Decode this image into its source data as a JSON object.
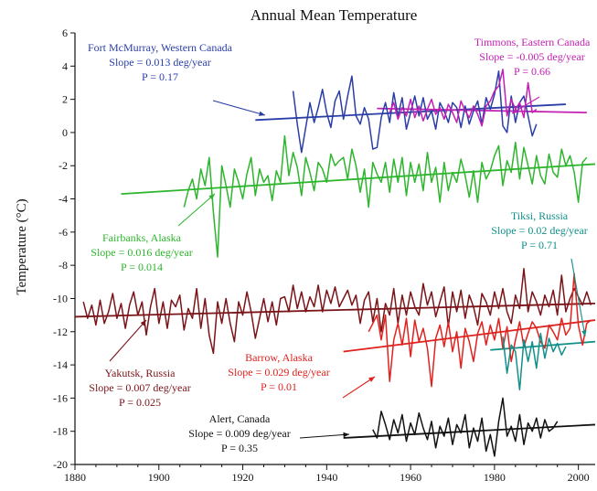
{
  "chart_data": {
    "type": "line",
    "title": "Annual Mean Temperature",
    "xlabel": "",
    "ylabel": "Temperature (°C)",
    "xlim": [
      1880,
      2004
    ],
    "ylim": [
      -20,
      6
    ],
    "xticks": [
      1880,
      1900,
      1920,
      1940,
      1960,
      1980,
      2000
    ],
    "yticks": [
      6,
      4,
      2,
      0,
      -2,
      -4,
      -6,
      -8,
      -10,
      -12,
      -14,
      -16,
      -18,
      -20
    ],
    "grid": false,
    "legend": "none",
    "series": [
      {
        "name": "Fort McMurray, Western Canada",
        "color": "#2a3ea6",
        "annotation": [
          "Fort McMurray, Western Canada",
          "Slope = 0.013 deg/year",
          "P = 0.17"
        ],
        "trend": {
          "x": [
            1923,
            1997
          ],
          "y": [
            0.75,
            1.7
          ]
        },
        "x": [
          1932,
          1933,
          1934,
          1935,
          1936,
          1937,
          1938,
          1939,
          1940,
          1941,
          1942,
          1943,
          1944,
          1945,
          1946,
          1947,
          1948,
          1949,
          1950,
          1951,
          1952,
          1953,
          1954,
          1955,
          1956,
          1957,
          1958,
          1959,
          1960,
          1961,
          1962,
          1963,
          1964,
          1965,
          1966,
          1967,
          1968,
          1969,
          1970,
          1971,
          1972,
          1973,
          1974,
          1975,
          1976,
          1977,
          1978,
          1979,
          1980,
          1981,
          1982,
          1983,
          1984,
          1985,
          1986,
          1987,
          1988,
          1989,
          1990
        ],
        "y": [
          2.5,
          0.5,
          -1.2,
          0.3,
          1.8,
          0.6,
          1.5,
          2.6,
          1.2,
          0.3,
          1.9,
          2.5,
          0.8,
          2.2,
          3.4,
          1.0,
          0.5,
          1.5,
          0.8,
          -1.0,
          -0.9,
          0.9,
          1.8,
          0.6,
          2.4,
          1.0,
          2.1,
          0.2,
          1.2,
          2.2,
          1.0,
          2.1,
          0.8,
          1.3,
          0.2,
          1.8,
          1.3,
          0.6,
          1.8,
          1.5,
          0.3,
          1.6,
          0.5,
          1.3,
          1.9,
          0.5,
          2.1,
          1.4,
          2.3,
          3.7,
          0.4,
          0.0,
          2.2,
          0.6,
          1.8,
          2.2,
          1.0,
          -0.2,
          0.5
        ]
      },
      {
        "name": "Timmons, Eastern Canada",
        "color": "#c41fb3",
        "annotation": [
          "Timmons, Eastern Canada",
          "Slope = -0.005 deg/year",
          "P = 0.66"
        ],
        "trend": {
          "x": [
            1952,
            2002
          ],
          "y": [
            1.45,
            1.2
          ]
        },
        "x": [
          1955,
          1956,
          1957,
          1958,
          1959,
          1960,
          1961,
          1962,
          1963,
          1964,
          1965,
          1966,
          1967,
          1968,
          1969,
          1970,
          1971,
          1972,
          1973,
          1974,
          1975,
          1976,
          1977,
          1978,
          1979,
          1980,
          1981,
          1982,
          1983,
          1984,
          1985,
          1986,
          1987,
          1988,
          1989,
          1990
        ],
        "y": [
          1.2,
          1.8,
          0.8,
          1.5,
          1.0,
          2.0,
          0.9,
          1.6,
          0.7,
          1.4,
          2.0,
          1.1,
          1.5,
          0.8,
          1.7,
          1.2,
          0.6,
          1.9,
          1.3,
          0.9,
          1.6,
          1.1,
          0.4,
          1.6,
          1.9,
          2.5,
          2.8,
          3.8,
          1.0,
          2.0,
          1.4,
          1.8,
          0.9,
          3.0,
          1.2,
          1.4
        ]
      },
      {
        "name": "Fairbanks, Alaska",
        "color": "#2db52d",
        "annotation": [
          "Fairbanks, Alaska",
          "Slope = 0.016 deg/year",
          "P = 0.014"
        ],
        "trend": {
          "x": [
            1891,
            2004
          ],
          "y": [
            -3.7,
            -1.9
          ]
        },
        "x": [
          1906,
          1907,
          1908,
          1909,
          1910,
          1911,
          1912,
          1913,
          1914,
          1915,
          1916,
          1917,
          1918,
          1919,
          1920,
          1921,
          1922,
          1923,
          1924,
          1925,
          1926,
          1927,
          1928,
          1929,
          1930,
          1931,
          1932,
          1933,
          1934,
          1935,
          1936,
          1937,
          1938,
          1939,
          1940,
          1941,
          1942,
          1943,
          1944,
          1945,
          1946,
          1947,
          1948,
          1949,
          1950,
          1951,
          1952,
          1953,
          1954,
          1955,
          1956,
          1957,
          1958,
          1959,
          1960,
          1961,
          1962,
          1963,
          1964,
          1965,
          1966,
          1967,
          1968,
          1969,
          1970,
          1971,
          1972,
          1973,
          1974,
          1975,
          1976,
          1977,
          1978,
          1979,
          1980,
          1981,
          1982,
          1983,
          1984,
          1985,
          1986,
          1987,
          1988,
          1989,
          1990,
          1991,
          1992,
          1993,
          1994,
          1995,
          1996,
          1997,
          1998,
          1999,
          2000,
          2001,
          2002
        ],
        "y": [
          -4.5,
          -3.5,
          -2.8,
          -4.0,
          -2.2,
          -3.2,
          -1.5,
          -4.8,
          -7.5,
          -2.0,
          -3.2,
          -4.5,
          -2.2,
          -3.0,
          -4.0,
          -2.5,
          -1.5,
          -3.8,
          -2.2,
          -3.0,
          -2.6,
          -4.1,
          -2.3,
          -3.0,
          -0.2,
          -2.6,
          -1.2,
          -2.1,
          -3.8,
          -1.5,
          -2.4,
          -3.5,
          -1.8,
          -2.2,
          -3.0,
          -1.3,
          -2.0,
          -1.7,
          -1.5,
          -2.8,
          -1.0,
          -2.0,
          -3.6,
          -2.2,
          -4.5,
          -1.8,
          -2.5,
          -3.0,
          -1.8,
          -3.6,
          -1.6,
          -3.0,
          -1.5,
          -3.8,
          -1.8,
          -3.0,
          -1.9,
          -3.5,
          -1.2,
          -3.0,
          -2.1,
          -4.2,
          -1.8,
          -3.5,
          -2.4,
          -3.0,
          -1.6,
          -2.6,
          -3.9,
          -2.3,
          -4.2,
          -1.8,
          -2.8,
          -2.3,
          -1.4,
          -0.8,
          -3.2,
          -1.7,
          -2.4,
          -0.6,
          -2.8,
          -0.9,
          -2.0,
          -3.1,
          -1.4,
          -2.6,
          -3.1,
          -1.3,
          -2.4,
          -2.7,
          -1.0,
          -2.0,
          -1.4,
          -2.4,
          -4.2,
          -1.8,
          -1.5
        ]
      },
      {
        "name": "Yakutsk, Russia",
        "color": "#7a1418",
        "annotation": [
          "Yakutsk, Russia",
          "Slope = 0.007 deg/year",
          "P = 0.025"
        ],
        "trend": {
          "x": [
            1880,
            2004
          ],
          "y": [
            -11.1,
            -10.3
          ]
        },
        "x": [
          1882,
          1883,
          1884,
          1885,
          1886,
          1887,
          1888,
          1889,
          1890,
          1891,
          1892,
          1893,
          1894,
          1895,
          1896,
          1897,
          1898,
          1899,
          1900,
          1901,
          1902,
          1903,
          1904,
          1905,
          1906,
          1907,
          1908,
          1909,
          1910,
          1911,
          1912,
          1913,
          1914,
          1915,
          1916,
          1917,
          1918,
          1919,
          1920,
          1921,
          1922,
          1923,
          1924,
          1925,
          1926,
          1927,
          1928,
          1929,
          1930,
          1931,
          1932,
          1933,
          1934,
          1935,
          1936,
          1937,
          1938,
          1939,
          1940,
          1941,
          1942,
          1943,
          1944,
          1945,
          1946,
          1947,
          1948,
          1949,
          1950,
          1951,
          1952,
          1953,
          1954,
          1955,
          1956,
          1957,
          1958,
          1959,
          1960,
          1961,
          1962,
          1963,
          1964,
          1965,
          1966,
          1967,
          1968,
          1969,
          1970,
          1971,
          1972,
          1973,
          1974,
          1975,
          1976,
          1977,
          1978,
          1979,
          1980,
          1981,
          1982,
          1983,
          1984,
          1985,
          1986,
          1987,
          1988,
          1989,
          1990,
          1991,
          1992,
          1993,
          1994,
          1995,
          1996,
          1997,
          1998,
          1999,
          2000,
          2001,
          2002,
          2003
        ],
        "y": [
          -10.2,
          -11.2,
          -10.4,
          -11.6,
          -10.1,
          -11.5,
          -10.8,
          -9.7,
          -11.2,
          -10.3,
          -11.8,
          -10.4,
          -9.6,
          -11.0,
          -10.2,
          -12.2,
          -10.5,
          -9.4,
          -11.5,
          -10.2,
          -11.8,
          -10.1,
          -10.5,
          -9.8,
          -11.9,
          -10.6,
          -11.2,
          -9.4,
          -11.8,
          -10.0,
          -12.2,
          -13.3,
          -10.2,
          -11.5,
          -10.0,
          -11.5,
          -12.6,
          -10.2,
          -11.0,
          -9.6,
          -10.8,
          -12.4,
          -11.2,
          -10.0,
          -11.4,
          -10.2,
          -11.6,
          -10.0,
          -9.9,
          -10.8,
          -9.2,
          -10.6,
          -9.6,
          -10.8,
          -9.9,
          -10.5,
          -9.2,
          -10.8,
          -9.5,
          -10.3,
          -9.3,
          -10.5,
          -10.0,
          -9.5,
          -10.4,
          -9.8,
          -11.5,
          -10.1,
          -9.6,
          -11.4,
          -10.0,
          -12.0,
          -10.3,
          -11.0,
          -9.4,
          -11.5,
          -9.8,
          -11.0,
          -9.6,
          -10.5,
          -11.0,
          -9.1,
          -10.4,
          -9.6,
          -11.1,
          -10.2,
          -9.3,
          -11.7,
          -9.6,
          -10.8,
          -9.5,
          -11.2,
          -9.8,
          -10.5,
          -11.6,
          -9.7,
          -10.2,
          -11.0,
          -9.6,
          -10.6,
          -9.4,
          -10.8,
          -11.5,
          -9.8,
          -10.6,
          -8.2,
          -10.8,
          -9.6,
          -10.2,
          -11.0,
          -9.8,
          -10.5,
          -9.5,
          -11.0,
          -8.6,
          -10.8,
          -10.0,
          -9.4,
          -9.9,
          -10.4,
          -9.6,
          -10.4
        ]
      },
      {
        "name": "Barrow, Alaska",
        "color": "#e0221f",
        "annotation": [
          "Barrow, Alaska",
          "Slope = 0.029 deg/year",
          "P = 0.01"
        ],
        "trend": {
          "x": [
            1944,
            2004
          ],
          "y": [
            -13.2,
            -11.3
          ]
        },
        "x": [
          1950,
          1951,
          1952,
          1953,
          1954,
          1955,
          1956,
          1957,
          1958,
          1959,
          1960,
          1961,
          1962,
          1963,
          1964,
          1965,
          1966,
          1967,
          1968,
          1969,
          1970,
          1971,
          1972,
          1973,
          1974,
          1975,
          1976,
          1977,
          1978,
          1979,
          1980,
          1981,
          1982,
          1983,
          1984,
          1985,
          1986,
          1987,
          1988,
          1989,
          1990,
          1991,
          1992,
          1993,
          1994,
          1995,
          1996,
          1997,
          1998,
          1999,
          2000,
          2001,
          2002,
          2003
        ],
        "y": [
          -12.0,
          -11.5,
          -11.0,
          -12.5,
          -11.0,
          -15.0,
          -12.5,
          -11.5,
          -12.8,
          -11.2,
          -13.5,
          -11.3,
          -12.6,
          -11.8,
          -13.0,
          -15.3,
          -12.4,
          -11.6,
          -12.9,
          -11.4,
          -13.2,
          -12.0,
          -14.2,
          -11.8,
          -12.6,
          -13.8,
          -12.1,
          -11.4,
          -12.8,
          -11.6,
          -12.5,
          -11.2,
          -13.0,
          -11.7,
          -13.8,
          -12.5,
          -11.4,
          -12.9,
          -12.1,
          -11.4,
          -11.8,
          -12.6,
          -13.0,
          -11.6,
          -12.0,
          -12.5,
          -11.2,
          -12.2,
          -11.8,
          -8.5,
          -11.6,
          -12.8,
          -11.5,
          -11.3
        ]
      },
      {
        "name": "Tiksi, Russia",
        "color": "#109088",
        "annotation": [
          "Tiksi, Russia",
          "Slope = 0.02 deg/year",
          "P = 0.71"
        ],
        "trend": {
          "x": [
            1979,
            2004
          ],
          "y": [
            -13.1,
            -12.6
          ]
        },
        "x": [
          1982,
          1983,
          1984,
          1985,
          1986,
          1987,
          1988,
          1989,
          1990,
          1991,
          1992,
          1993,
          1994,
          1995,
          1996,
          1997
        ],
        "y": [
          -12.3,
          -14.5,
          -12.8,
          -13.2,
          -15.5,
          -12.5,
          -13.8,
          -12.6,
          -14.2,
          -12.1,
          -13.6,
          -12.4,
          -13.2,
          -12.7,
          -13.4,
          -12.9
        ]
      },
      {
        "name": "Alert, Canada",
        "color": "#111111",
        "annotation": [
          "Alert, Canada",
          "Slope = 0.009 deg/year",
          "P = 0.35"
        ],
        "trend": {
          "x": [
            1944,
            2004
          ],
          "y": [
            -18.4,
            -17.6
          ]
        },
        "x": [
          1951,
          1952,
          1953,
          1954,
          1955,
          1956,
          1957,
          1958,
          1959,
          1960,
          1961,
          1962,
          1963,
          1964,
          1965,
          1966,
          1967,
          1968,
          1969,
          1970,
          1971,
          1972,
          1973,
          1974,
          1975,
          1976,
          1977,
          1978,
          1979,
          1980,
          1981,
          1982,
          1983,
          1984,
          1985,
          1986,
          1987,
          1988,
          1989,
          1990,
          1991,
          1992,
          1993,
          1994,
          1995
        ],
        "y": [
          -17.9,
          -18.4,
          -16.8,
          -17.6,
          -18.5,
          -17.3,
          -18.1,
          -17.0,
          -18.6,
          -17.5,
          -18.2,
          -16.9,
          -17.8,
          -18.5,
          -17.4,
          -19.0,
          -17.7,
          -18.3,
          -17.2,
          -18.8,
          -17.6,
          -18.1,
          -17.0,
          -19.0,
          -17.8,
          -18.6,
          -17.2,
          -19.2,
          -18.2,
          -19.5,
          -17.4,
          -16.0,
          -18.3,
          -17.7,
          -18.6,
          -17.0,
          -18.8,
          -17.5,
          -18.0,
          -17.2,
          -18.4,
          -17.3,
          -18.0,
          -17.8,
          -17.4
        ]
      }
    ]
  }
}
